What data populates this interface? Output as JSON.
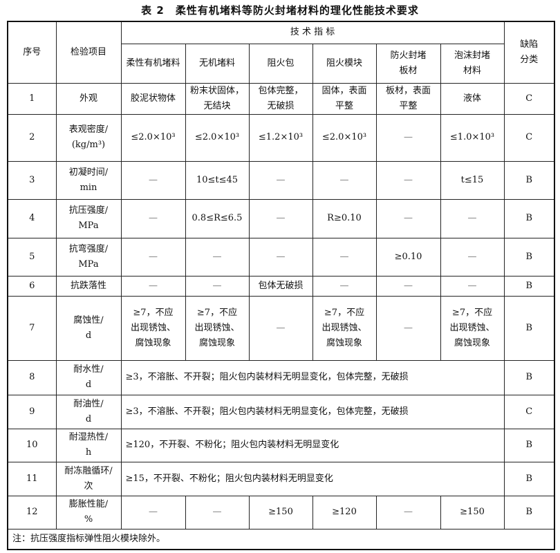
{
  "title": "表 2　柔性有机堵料等防火封堵材料的理化性能技术要求",
  "headers": {
    "no": "序号",
    "item": "检验项目",
    "group": "技 术 指 标",
    "defect": "缺陷\n分类",
    "materials": [
      "柔性有机堵料",
      "无机堵料",
      "阻火包",
      "阻火模块",
      "防火封堵\n板材",
      "泡沫封堵\n材料"
    ]
  },
  "rows": [
    {
      "no": "1",
      "item": "外观",
      "vals": [
        "胶泥状物体",
        "粉末状固体，\n无结块",
        "包体完整，\n无破损",
        "固体，表面\n平整",
        "板材，表面\n平整",
        "液体"
      ],
      "defect": "C"
    },
    {
      "no": "2",
      "item": "表观密度/\n(kg/m³)",
      "vals": [
        "≤2.0×10³",
        "≤2.0×10³",
        "≤1.2×10³",
        "≤2.0×10³",
        "—",
        "≤1.0×10³"
      ],
      "defect": "C"
    },
    {
      "no": "3",
      "item": "初凝时间/\nmin",
      "vals": [
        "—",
        "10≤t≤45",
        "—",
        "—",
        "—",
        "t≤15"
      ],
      "defect": "B"
    },
    {
      "no": "4",
      "item": "抗压强度/\nMPa",
      "vals": [
        "—",
        "0.8≤R≤6.5",
        "—",
        "R≥0.10",
        "—",
        "—"
      ],
      "defect": "B"
    },
    {
      "no": "5",
      "item": "抗弯强度/\nMPa",
      "vals": [
        "—",
        "—",
        "—",
        "—",
        "≥0.10",
        "—"
      ],
      "defect": "B"
    },
    {
      "no": "6",
      "item": "抗跌落性",
      "vals": [
        "—",
        "—",
        "包体无破损",
        "—",
        "—",
        "—"
      ],
      "defect": "B"
    },
    {
      "no": "7",
      "item": "腐蚀性/\nd",
      "vals": [
        "≥7，不应\n出现锈蚀、\n腐蚀现象",
        "≥7，不应\n出现锈蚀、\n腐蚀现象",
        "—",
        "≥7，不应\n出现锈蚀、\n腐蚀现象",
        "—",
        "≥7，不应\n出现锈蚀、\n腐蚀现象"
      ],
      "defect": "B"
    },
    {
      "no": "8",
      "item": "耐水性/\nd",
      "merged": "≥3，不溶胀、不开裂；阻火包内装材料无明显变化，包体完整，无破损",
      "defect": "B"
    },
    {
      "no": "9",
      "item": "耐油性/\nd",
      "merged": "≥3，不溶胀、不开裂；阻火包内装材料无明显变化，包体完整，无破损",
      "defect": "C"
    },
    {
      "no": "10",
      "item": "耐湿热性/\nh",
      "merged": "≥120，不开裂、不粉化；阻火包内装材料无明显变化",
      "defect": "B"
    },
    {
      "no": "11",
      "item": "耐冻融循环/\n次",
      "merged": "≥15，不开裂、不粉化；阻火包内装材料无明显变化",
      "defect": "B"
    },
    {
      "no": "12",
      "item": "膨胀性能/\n%",
      "vals": [
        "—",
        "—",
        "≥150",
        "≥120",
        "—",
        "≥150"
      ],
      "defect": "B"
    }
  ],
  "note": "注：抗压强度指标弹性阻火模块除外。"
}
